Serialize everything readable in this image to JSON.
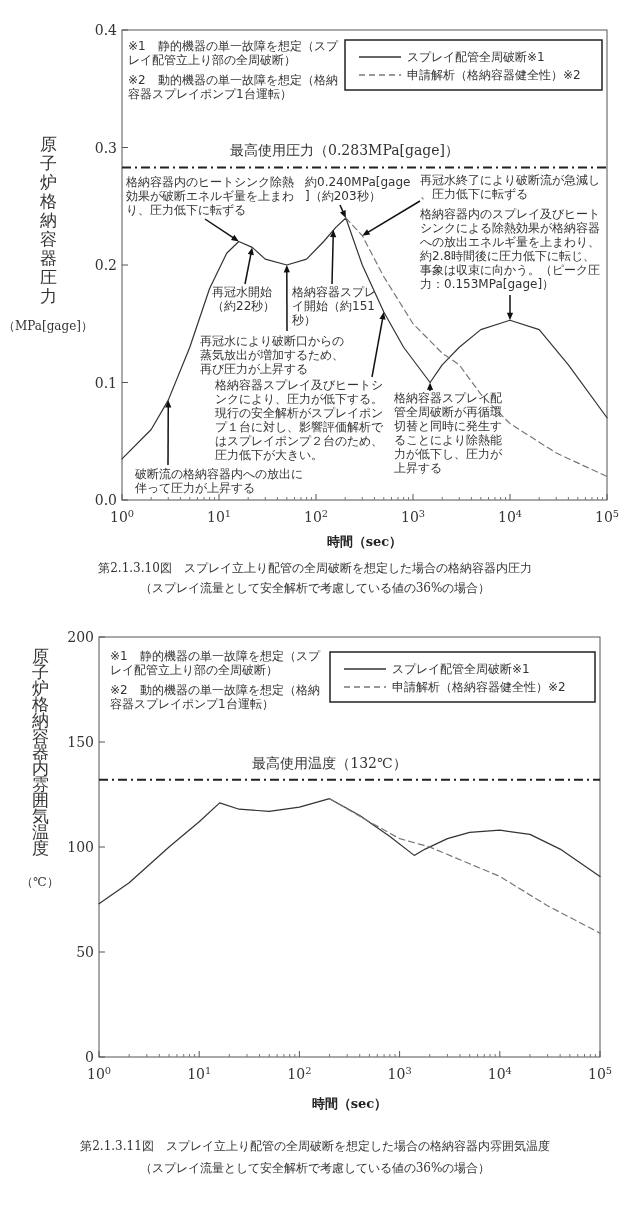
{
  "chart_data": [
    {
      "type": "line",
      "title": "第2.1.3.10図　スプレイ立上り配管の全周破断を想定した場合の格納容器内圧力",
      "subtitle": "（スプレイ流量として安全解析で考慮している値の36%の場合）",
      "xlabel": "時間（sec）",
      "ylabel": "原子炉格納容器圧力（MPa[gage]）",
      "log": "x",
      "xlim": [
        1,
        100000
      ],
      "ylim": [
        0,
        0.4
      ],
      "xticks": [
        {
          "value": 1,
          "label": "10$^{0}$"
        },
        {
          "value": 10,
          "label": "10$^{1}$"
        },
        {
          "value": 100,
          "label": "10$^{2}$"
        },
        {
          "value": 1000,
          "label": "10$^{3}$"
        },
        {
          "value": 10000,
          "label": "10$^{4}$"
        },
        {
          "value": 100000,
          "label": "10$^{5}$"
        }
      ],
      "yticks": [
        {
          "value": 0,
          "label": "0.0"
        },
        0.1,
        0.2,
        0.3,
        0.4
      ],
      "legend": "top right",
      "series": [
        {
          "name": "スプレイ配管全周破断※1",
          "color": "#333333",
          "line_style": "solid",
          "x": [
            1,
            2,
            3,
            5,
            8,
            12,
            16,
            22,
            30,
            50,
            80,
            120,
            160,
            203,
            300,
            500,
            800,
            1500,
            2000,
            3000,
            5000,
            10000,
            20000,
            40000,
            100000
          ],
          "values": [
            0.035,
            0.06,
            0.085,
            0.13,
            0.18,
            0.21,
            0.22,
            0.215,
            0.205,
            0.2,
            0.205,
            0.22,
            0.232,
            0.24,
            0.2,
            0.16,
            0.13,
            0.1,
            0.115,
            0.13,
            0.145,
            0.153,
            0.145,
            0.115,
            0.07
          ]
        },
        {
          "name": "申請解析（格納容器健全性）※2",
          "color": "#777777",
          "line_style": "dashed",
          "x": [
            203,
            300,
            500,
            1000,
            2000,
            3000,
            5000,
            10000,
            30000,
            100000
          ],
          "values": [
            0.24,
            0.225,
            0.19,
            0.15,
            0.125,
            0.115,
            0.09,
            0.065,
            0.04,
            0.02
          ]
        }
      ],
      "ref_lines": [
        {
          "axis": "y",
          "value": 0.283,
          "label": "最高使用圧力（0.283MPa[gage]）",
          "color": "#222222",
          "line_style": "dashdot"
        }
      ],
      "annotations": [
        {
          "text": "格納容器内のヒートシンク除熱効果が破断エネルギ量を上まわり、圧力低下に転ずる",
          "x": 16,
          "y": 0.22
        },
        {
          "text": "約0.240MPa[gage]（約203秒）",
          "x": 203,
          "y": 0.24
        },
        {
          "text": "再冠水終了により破断流が急減し、圧力低下に転ずる",
          "x": 300,
          "y": 0.225
        },
        {
          "text": "格納容器内のスプレイ及びヒートシンクによる除熱効果が格納容器への放出エネルギ量を上まわり、約2.8時間後に圧力低下に転じ、事象は収束に向かう。（ピーク圧力：0.153MPa[gage]）",
          "x": 10000,
          "y": 0.153
        },
        {
          "text": "再冠水開始（約22秒）",
          "x": 22,
          "y": 0.215
        },
        {
          "text": "格納容器スプレイ開始（約151秒）",
          "x": 151,
          "y": 0.23
        },
        {
          "text": "再冠水により破断口からの蒸気放出が増加するため、再び圧力が上昇する",
          "x": 50,
          "y": 0.2
        },
        {
          "text": "格納容器スプレイ及びヒートシンクにより、圧力が低下する。現行の安全解析がスプレイポンプ１台に対し、影響評価解析ではスプレイポンプ２台のため、圧力低下が大きい。",
          "x": 500,
          "y": 0.16
        },
        {
          "text": "格納容器スプレイ配管全周破断が再循環切替と同時に発生することにより除熱能力が低下し、圧力が上昇する",
          "x": 1500,
          "y": 0.1
        },
        {
          "text": "破断流の格納容器内への放出に伴って圧力が上昇する",
          "x": 3,
          "y": 0.085
        },
        "※1　静的機器の単一故障を想定（スプレイ配管立上り部の全周破断）",
        "※2　動的機器の単一故障を想定（格納容器スプレイポンプ1台運転）"
      ]
    },
    {
      "type": "line",
      "title": "第2.1.3.11図　スプレイ立上り配管の全周破断を想定した場合の格納容器内雰囲気温度",
      "subtitle": "（スプレイ流量として安全解析で考慮している値の36%の場合）",
      "xlabel": "時間（sec）",
      "ylabel": "原子炉格納容器内雰囲気温度（℃）",
      "log": "x",
      "xlim": [
        1,
        100000
      ],
      "ylim": [
        0,
        200
      ],
      "xticks": [
        {
          "value": 1,
          "label": "10$^{0}$"
        },
        {
          "value": 10,
          "label": "10$^{1}$"
        },
        {
          "value": 100,
          "label": "10$^{2}$"
        },
        {
          "value": 1000,
          "label": "10$^{3}$"
        },
        {
          "value": 10000,
          "label": "10$^{4}$"
        },
        {
          "value": 100000,
          "label": "10$^{5}$"
        }
      ],
      "yticks": [
        0,
        50,
        100,
        150,
        200
      ],
      "legend": "top right",
      "series": [
        {
          "name": "スプレイ配管全周破断※1",
          "color": "#333333",
          "line_style": "solid",
          "x": [
            1,
            2,
            5,
            10,
            16,
            25,
            50,
            100,
            200,
            400,
            800,
            1400,
            1800,
            3000,
            5000,
            10000,
            20000,
            40000,
            100000
          ],
          "values": [
            73,
            83,
            100,
            112,
            121,
            118,
            117,
            119,
            123,
            115,
            105,
            96,
            99,
            104,
            107,
            108,
            106,
            99,
            86
          ]
        },
        {
          "name": "申請解析（格納容器健全性）※2",
          "color": "#777777",
          "line_style": "dashed",
          "x": [
            200,
            500,
            1000,
            2000,
            5000,
            10000,
            30000,
            100000
          ],
          "values": [
            123,
            112,
            104,
            100,
            92,
            86,
            72,
            59
          ]
        }
      ],
      "ref_lines": [
        {
          "axis": "y",
          "value": 132,
          "label": "最高使用温度（132℃）",
          "color": "#222222",
          "line_style": "dashdot"
        }
      ],
      "annotations": [
        "※1　静的機器の単一故障を想定（スプレイ配管立上り部の全周破断）",
        "※2　動的機器の単一故障を想定（格納容器スプレイポンプ1台運転）"
      ]
    }
  ]
}
